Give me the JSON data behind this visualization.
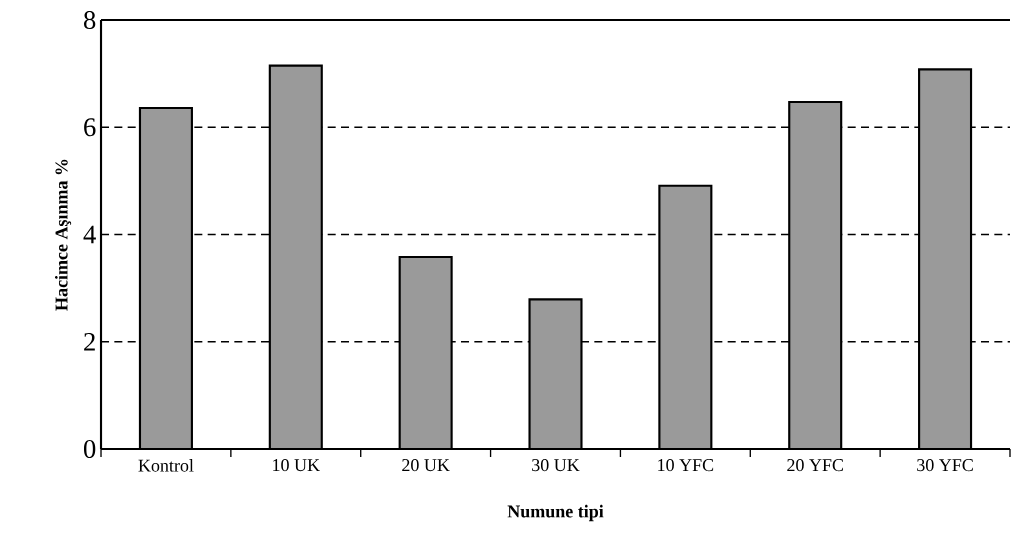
{
  "chart_data": {
    "type": "bar",
    "xlabel": "Numune tipi",
    "ylabel": "Hacimce Aşınma %",
    "categories": [
      "Kontrol",
      "10 UK",
      "20 UK",
      "30 UK",
      "10 YFC",
      "20 YFC",
      "30 YFC"
    ],
    "values": [
      6.36,
      7.15,
      3.58,
      2.79,
      4.91,
      6.47,
      7.08
    ],
    "color": "#9a9a9a",
    "ylim": [
      0,
      8
    ],
    "yticks": [
      0,
      2,
      4,
      6,
      8
    ],
    "grid": "y"
  }
}
